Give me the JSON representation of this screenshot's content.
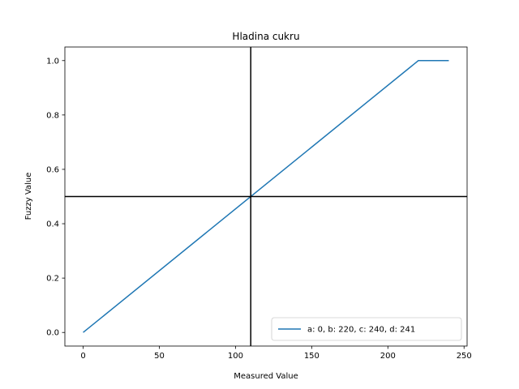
{
  "chart_data": {
    "type": "line",
    "title": "Hladina cukru",
    "xlabel": "Measured Value",
    "ylabel": "Fuzzy Value",
    "xlim": [
      -12,
      252
    ],
    "ylim": [
      -0.05,
      1.05
    ],
    "xticks": [
      0,
      50,
      100,
      150,
      200,
      250
    ],
    "xtick_labels": [
      "0",
      "50",
      "100",
      "150",
      "200",
      "250"
    ],
    "yticks": [
      0.0,
      0.2,
      0.4,
      0.6,
      0.8,
      1.0
    ],
    "ytick_labels": [
      "0.0",
      "0.2",
      "0.4",
      "0.6",
      "0.8",
      "1.0"
    ],
    "grid": false,
    "legend_position": "lower-right",
    "series": [
      {
        "name": "a: 0, b: 220, c: 240, d: 241",
        "color": "#1f77b4",
        "x": [
          0,
          220,
          240
        ],
        "y": [
          0.0,
          1.0,
          1.0
        ]
      }
    ],
    "reference_lines": {
      "vertical_x": 110,
      "horizontal_y": 0.5,
      "color": "#000000"
    }
  }
}
